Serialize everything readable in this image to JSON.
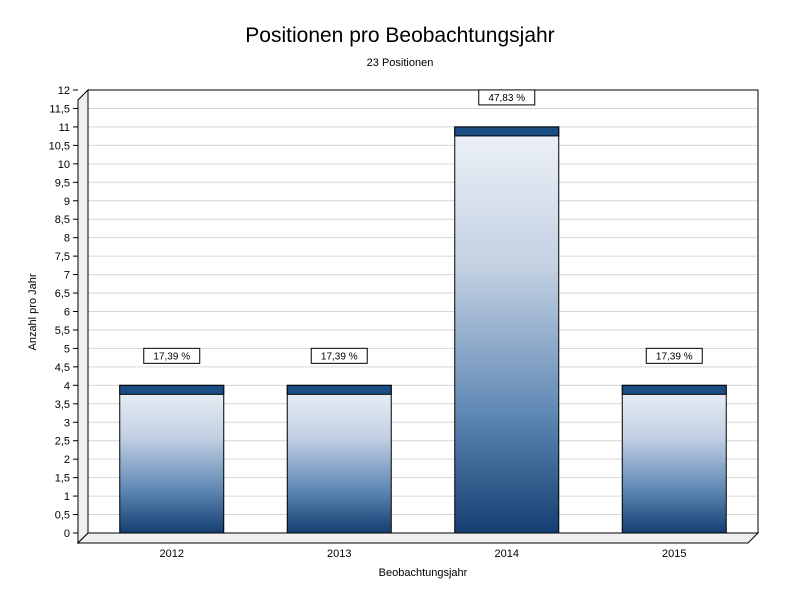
{
  "header": {
    "title": "Positionen pro Beobachtungsjahr",
    "subtitle": "23 Positionen"
  },
  "chart_data": {
    "type": "bar",
    "title": "Positionen pro Beobachtungsjahr",
    "subtitle": "23 Positionen",
    "xlabel": "Beobachtungsjahr",
    "ylabel": "Anzahl pro Jahr",
    "categories": [
      "2012",
      "2013",
      "2014",
      "2015"
    ],
    "values": [
      4,
      4,
      11,
      4
    ],
    "percent_labels": [
      "17,39 %",
      "17,39 %",
      "47,83 %",
      "17,39 %"
    ],
    "total_label": "23 Positionen",
    "ylim": [
      0,
      12
    ],
    "y_tick_step": 0.5,
    "y_tick_labels": [
      "0",
      "0,5",
      "1",
      "1,5",
      "2",
      "2,5",
      "3",
      "3,5",
      "4",
      "4,5",
      "5",
      "5,5",
      "6",
      "6,5",
      "7",
      "7,5",
      "8",
      "8,5",
      "9",
      "9,5",
      "10",
      "10,5",
      "11",
      "11,5",
      "12"
    ],
    "grid": true,
    "legend": "none",
    "colors": {
      "title": "#0033cc",
      "subtitle": "#0000cc",
      "bar_gradient_top": "#eef2f8",
      "bar_gradient_mid1": "#c2d0e2",
      "bar_gradient_mid2": "#6189b5",
      "bar_gradient_bottom": "#143e72",
      "bar_cap": "#1c4c84",
      "grid": "#d6d6d6",
      "wall": "#f0f0f0",
      "frame": "#000000",
      "label_box_bg": "#ffffff"
    }
  }
}
